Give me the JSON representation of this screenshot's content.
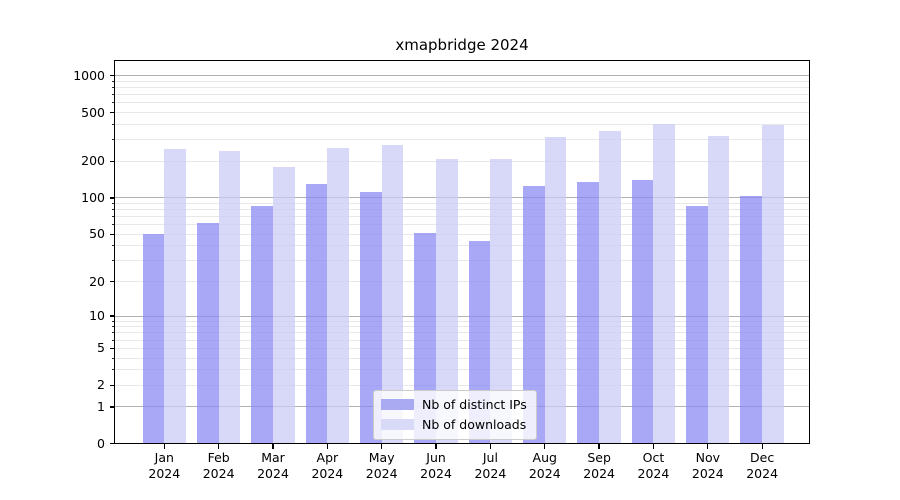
{
  "chart_data": {
    "type": "bar",
    "title": "xmapbridge 2024",
    "categories": [
      "Jan",
      "Feb",
      "Mar",
      "Apr",
      "May",
      "Jun",
      "Jul",
      "Aug",
      "Sep",
      "Oct",
      "Nov",
      "Dec"
    ],
    "x_year_label": "2024",
    "series": [
      {
        "name": "Nb of distinct IPs",
        "color": "rgba(134,134,242,0.72)",
        "legend_color": "#aaaaf2",
        "values": [
          50,
          62,
          85,
          131,
          112,
          51,
          44,
          126,
          134,
          141,
          86,
          104
        ]
      },
      {
        "name": "Nb of downloads",
        "color": "rgba(201,201,246,0.72)",
        "legend_color": "#d9d9f8",
        "values": [
          254,
          243,
          180,
          255,
          271,
          210,
          209,
          318,
          352,
          402,
          319,
          394
        ]
      }
    ],
    "yscale": "log10(1+v)",
    "ylim": [
      0,
      1000
    ],
    "ytick_labels": [
      "1000",
      "500",
      "200",
      "100",
      "50",
      "20",
      "10",
      "5",
      "2",
      "1",
      "0"
    ],
    "major_gridline_values": [
      1,
      10,
      100,
      1000
    ],
    "minor_gridline_values": [
      2,
      3,
      4,
      5,
      6,
      7,
      8,
      9,
      20,
      30,
      40,
      50,
      60,
      70,
      80,
      90,
      200,
      300,
      400,
      500,
      600,
      700,
      800,
      900
    ],
    "grid": true,
    "legend_position": "lower center"
  },
  "colors": {
    "background": "#ffffff",
    "bar_distinct_ips": "#aaaaf2",
    "bar_downloads": "#d9d9f8",
    "major_grid": "#b2b2b2",
    "minor_grid": "#e8e8e8",
    "axis": "#000000",
    "legend_border": "#cbcbcb"
  }
}
